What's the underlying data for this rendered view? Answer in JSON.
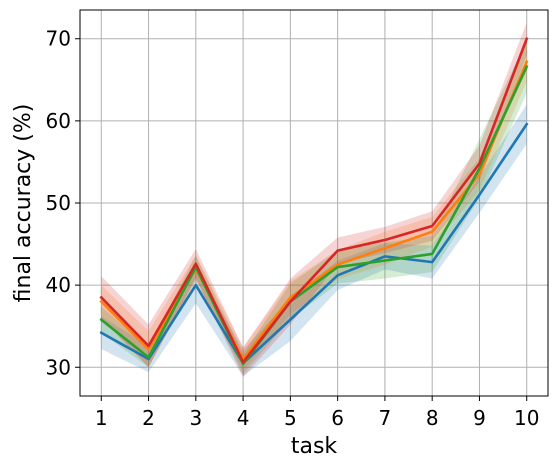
{
  "chart_data": {
    "type": "line",
    "title": "",
    "xlabel": "task",
    "ylabel": "final accuracy (%)",
    "x": [
      1,
      2,
      3,
      4,
      5,
      6,
      7,
      8,
      9,
      10
    ],
    "xlim": [
      0.55,
      10.45
    ],
    "ylim": [
      26.5,
      73.5
    ],
    "xticks": [
      "1",
      "2",
      "3",
      "4",
      "5",
      "6",
      "7",
      "8",
      "9",
      "10"
    ],
    "yticks": [
      30,
      40,
      50,
      60,
      70
    ],
    "grid": true,
    "legend": "none",
    "series": [
      {
        "color": "#1f77b4",
        "values": [
          34.2,
          31.0,
          40.0,
          30.5,
          35.8,
          41.2,
          43.5,
          42.8,
          51.0,
          59.6
        ],
        "band": [
          2.0,
          1.6,
          2.2,
          1.6,
          2.6,
          1.8,
          1.6,
          2.0,
          2.2,
          2.4
        ]
      },
      {
        "color": "#ff7f0e",
        "values": [
          38.0,
          32.2,
          42.0,
          31.0,
          38.5,
          42.5,
          44.5,
          46.5,
          53.5,
          67.2
        ],
        "band": [
          2.0,
          2.2,
          1.6,
          1.4,
          2.0,
          1.8,
          2.0,
          1.8,
          2.0,
          2.4
        ]
      },
      {
        "color": "#2ca02c",
        "values": [
          35.8,
          31.2,
          42.2,
          30.4,
          38.0,
          42.2,
          43.0,
          43.8,
          54.2,
          66.6
        ],
        "band": [
          1.6,
          1.2,
          1.4,
          1.2,
          2.2,
          2.0,
          2.2,
          2.2,
          3.6,
          3.2
        ]
      },
      {
        "color": "#d62728",
        "values": [
          38.5,
          32.6,
          42.6,
          30.6,
          38.0,
          44.2,
          45.5,
          47.2,
          54.8,
          70.0
        ],
        "band": [
          2.6,
          2.6,
          1.8,
          1.8,
          2.8,
          1.6,
          1.6,
          1.8,
          2.2,
          2.0
        ]
      }
    ]
  }
}
